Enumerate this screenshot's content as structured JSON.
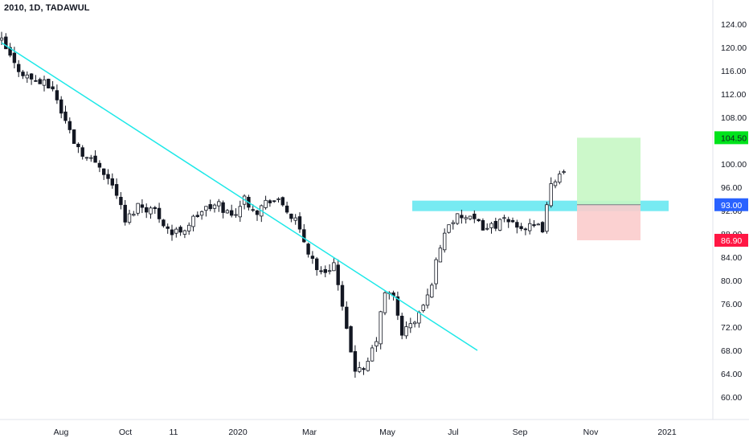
{
  "header": {
    "title": "2010, 1D, TADAWUL"
  },
  "chart_data": {
    "type": "candlestick",
    "title": "2010, 1D, TADAWUL",
    "ylim": [
      57.0,
      127.0
    ],
    "y_ticks": [
      "124.00",
      "120.00",
      "116.00",
      "112.00",
      "108.00",
      "100.00",
      "96.00",
      "92.00",
      "88.00",
      "84.00",
      "80.00",
      "76.00",
      "72.00",
      "68.00",
      "64.00",
      "60.00"
    ],
    "x_ticks": [
      "Aug",
      "Oct",
      "11",
      "2020",
      "Mar",
      "May",
      "Jul",
      "Sep",
      "Nov",
      "2021"
    ],
    "price_path": [
      [
        0,
        121
      ],
      [
        3,
        117
      ],
      [
        6,
        115
      ],
      [
        9,
        114
      ],
      [
        12,
        113
      ],
      [
        14,
        109
      ],
      [
        17,
        104
      ],
      [
        20,
        101
      ],
      [
        23,
        100
      ],
      [
        27,
        95
      ],
      [
        29,
        90
      ],
      [
        32,
        93
      ],
      [
        36,
        92
      ],
      [
        40,
        88
      ],
      [
        43,
        89
      ],
      [
        47,
        92
      ],
      [
        51,
        93
      ],
      [
        54,
        91
      ],
      [
        57,
        94
      ],
      [
        60,
        92
      ],
      [
        63,
        94
      ],
      [
        66,
        93
      ],
      [
        69,
        90
      ],
      [
        72,
        85
      ],
      [
        75,
        81
      ],
      [
        78,
        83
      ],
      [
        81,
        71
      ],
      [
        83,
        65
      ],
      [
        85,
        64
      ],
      [
        88,
        70
      ],
      [
        90,
        78
      ],
      [
        92,
        77
      ],
      [
        94,
        71
      ],
      [
        97,
        73
      ],
      [
        100,
        77
      ],
      [
        103,
        86
      ],
      [
        105,
        90
      ],
      [
        108,
        91
      ],
      [
        111,
        90
      ],
      [
        114,
        89
      ],
      [
        117,
        90
      ],
      [
        120,
        90
      ],
      [
        123,
        89
      ],
      [
        127,
        89
      ],
      [
        129,
        96
      ],
      [
        131,
        99
      ],
      [
        132,
        98
      ]
    ],
    "trendline": {
      "from": [
        0,
        120.8
      ],
      "to": [
        120,
        68.0
      ],
      "color": "#1ee8e8"
    },
    "zones": [
      {
        "kind": "resistance",
        "low": 91.9,
        "high": 93.7,
        "color": "#5fe6f0"
      },
      {
        "kind": "take-profit",
        "low": 93.0,
        "high": 104.5,
        "color": "#c7f7c4"
      },
      {
        "kind": "stop-loss",
        "low": 86.9,
        "high": 93.0,
        "color": "#fbcccc"
      }
    ],
    "price_badges": [
      {
        "label": "104.50",
        "value": 104.5,
        "bg": "#00e31b",
        "fg": "#131722"
      },
      {
        "label": "93.00",
        "value": 93.0,
        "bg": "#2962ff",
        "fg": "#ffffff"
      },
      {
        "label": "86.90",
        "value": 86.9,
        "bg": "#ff1744",
        "fg": "#ffffff"
      }
    ],
    "candle_color": "#131722",
    "grid": false
  }
}
